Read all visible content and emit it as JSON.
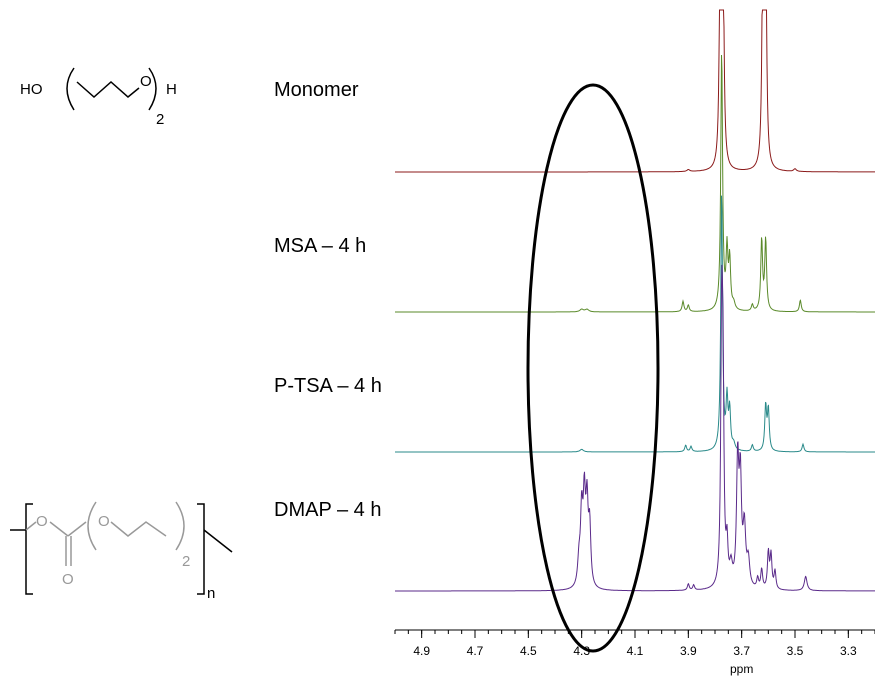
{
  "structures": {
    "monomer": {
      "left_group": "HO",
      "ring_atom": "O",
      "right_group": "H",
      "repeat_count": "2"
    },
    "polymer": {
      "ester_oxygen": "O",
      "ether_oxygen": "O",
      "carbonyl_oxygen": "O",
      "inner_repeat": "2",
      "outer_repeat": "n"
    }
  },
  "chart_data": {
    "type": "line",
    "xlabel": "ppm",
    "xlim": [
      5.0,
      3.2
    ],
    "xticks": [
      4.9,
      4.7,
      4.5,
      4.3,
      4.1,
      3.9,
      3.7,
      3.5,
      3.3
    ],
    "tick_labels": [
      "4.9",
      "4.7",
      "4.5",
      "4.3",
      "4.1",
      "3.9",
      "3.7",
      "3.5",
      "3.3"
    ],
    "highlight": {
      "shape": "ellipse",
      "center_ppm": 4.3
    },
    "series": [
      {
        "name": "Monomer",
        "color": "#8b1a1a",
        "peaks": [
          {
            "ppm": 3.78,
            "height": 2.0,
            "width": 0.004
          },
          {
            "ppm": 3.77,
            "height": 1.8,
            "width": 0.004
          },
          {
            "ppm": 3.62,
            "height": 2.0,
            "width": 0.004
          },
          {
            "ppm": 3.61,
            "height": 1.8,
            "width": 0.004
          },
          {
            "ppm": 3.5,
            "height": 0.02,
            "width": 0.006
          },
          {
            "ppm": 3.9,
            "height": 0.015,
            "width": 0.006
          }
        ]
      },
      {
        "name": "MSA – 4 h",
        "color": "#5a8a2a",
        "peaks": [
          {
            "ppm": 3.775,
            "height": 2.0,
            "width": 0.004
          },
          {
            "ppm": 3.755,
            "height": 0.45,
            "width": 0.004
          },
          {
            "ppm": 3.745,
            "height": 0.38,
            "width": 0.004
          },
          {
            "ppm": 3.73,
            "height": 0.05,
            "width": 0.006
          },
          {
            "ppm": 3.625,
            "height": 0.55,
            "width": 0.004
          },
          {
            "ppm": 3.61,
            "height": 0.55,
            "width": 0.004
          },
          {
            "ppm": 3.66,
            "height": 0.05,
            "width": 0.004
          },
          {
            "ppm": 3.48,
            "height": 0.09,
            "width": 0.004
          },
          {
            "ppm": 3.92,
            "height": 0.08,
            "width": 0.004
          },
          {
            "ppm": 3.9,
            "height": 0.05,
            "width": 0.004
          },
          {
            "ppm": 4.3,
            "height": 0.02,
            "width": 0.008
          },
          {
            "ppm": 4.28,
            "height": 0.02,
            "width": 0.008
          }
        ]
      },
      {
        "name": "P-TSA – 4 h",
        "color": "#2a8a8a",
        "peaks": [
          {
            "ppm": 3.775,
            "height": 2.0,
            "width": 0.004
          },
          {
            "ppm": 3.755,
            "height": 0.38,
            "width": 0.004
          },
          {
            "ppm": 3.745,
            "height": 0.3,
            "width": 0.004
          },
          {
            "ppm": 3.73,
            "height": 0.05,
            "width": 0.006
          },
          {
            "ppm": 3.61,
            "height": 0.35,
            "width": 0.004
          },
          {
            "ppm": 3.6,
            "height": 0.32,
            "width": 0.004
          },
          {
            "ppm": 3.66,
            "height": 0.05,
            "width": 0.004
          },
          {
            "ppm": 3.47,
            "height": 0.06,
            "width": 0.004
          },
          {
            "ppm": 3.91,
            "height": 0.05,
            "width": 0.004
          },
          {
            "ppm": 3.89,
            "height": 0.04,
            "width": 0.004
          },
          {
            "ppm": 4.3,
            "height": 0.02,
            "width": 0.008
          }
        ]
      },
      {
        "name": "DMAP – 4 h",
        "color": "#5a2a8a",
        "peaks": [
          {
            "ppm": 3.775,
            "height": 1.9,
            "width": 0.004
          },
          {
            "ppm": 3.77,
            "height": 1.4,
            "width": 0.004
          },
          {
            "ppm": 3.755,
            "height": 0.3,
            "width": 0.004
          },
          {
            "ppm": 3.74,
            "height": 0.15,
            "width": 0.006
          },
          {
            "ppm": 3.715,
            "height": 0.95,
            "width": 0.005
          },
          {
            "ppm": 3.705,
            "height": 0.8,
            "width": 0.005
          },
          {
            "ppm": 3.69,
            "height": 0.45,
            "width": 0.006
          },
          {
            "ppm": 3.675,
            "height": 0.2,
            "width": 0.006
          },
          {
            "ppm": 3.6,
            "height": 0.28,
            "width": 0.004
          },
          {
            "ppm": 3.59,
            "height": 0.26,
            "width": 0.004
          },
          {
            "ppm": 3.575,
            "height": 0.14,
            "width": 0.004
          },
          {
            "ppm": 3.625,
            "height": 0.15,
            "width": 0.004
          },
          {
            "ppm": 3.64,
            "height": 0.08,
            "width": 0.004
          },
          {
            "ppm": 3.46,
            "height": 0.11,
            "width": 0.006
          },
          {
            "ppm": 3.9,
            "height": 0.05,
            "width": 0.004
          },
          {
            "ppm": 3.88,
            "height": 0.04,
            "width": 0.004
          },
          {
            "ppm": 4.3,
            "height": 0.55,
            "width": 0.005
          },
          {
            "ppm": 4.29,
            "height": 0.65,
            "width": 0.005
          },
          {
            "ppm": 4.28,
            "height": 0.6,
            "width": 0.005
          },
          {
            "ppm": 4.27,
            "height": 0.45,
            "width": 0.005
          },
          {
            "ppm": 4.31,
            "height": 0.2,
            "width": 0.006
          }
        ]
      }
    ]
  }
}
